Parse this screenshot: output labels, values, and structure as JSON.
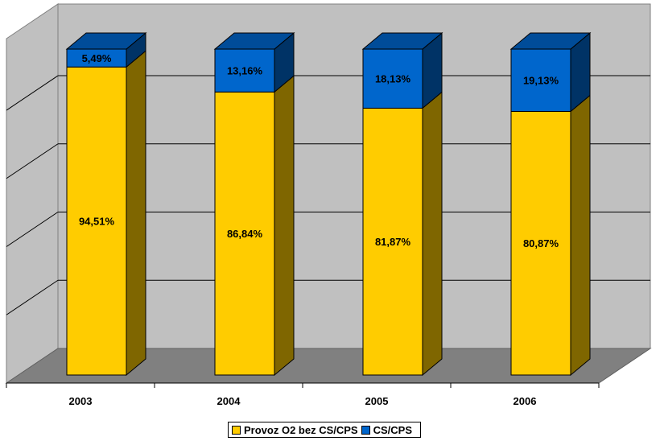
{
  "chart_data": {
    "type": "stacked-bar-3d",
    "categories": [
      "2003",
      "2004",
      "2005",
      "2006"
    ],
    "series": [
      {
        "name": "Provoz O2 bez CS/CPS",
        "values": [
          94.51,
          86.84,
          81.87,
          80.87
        ],
        "labels": [
          "94,51%",
          "86,84%",
          "81,87%",
          "80,87%"
        ],
        "color": "#ffcc00"
      },
      {
        "name": "CS/CPS",
        "values": [
          5.49,
          13.16,
          18.13,
          19.13
        ],
        "labels": [
          "5,49%",
          "13,16%",
          "18,13%",
          "19,13%"
        ],
        "color": "#0066cc"
      }
    ],
    "totals": [
      100,
      100,
      100,
      100
    ],
    "ylim": [
      0,
      100
    ],
    "grid": true,
    "legend": "bottom"
  },
  "colors": {
    "wall": "#c0c0c0",
    "floor": "#808080",
    "yellow_top": "#ffcc00",
    "yellow_side": "#7f6600",
    "blue_front": "#0066cc",
    "blue_side": "#003366",
    "blue_top": "#004c99"
  }
}
